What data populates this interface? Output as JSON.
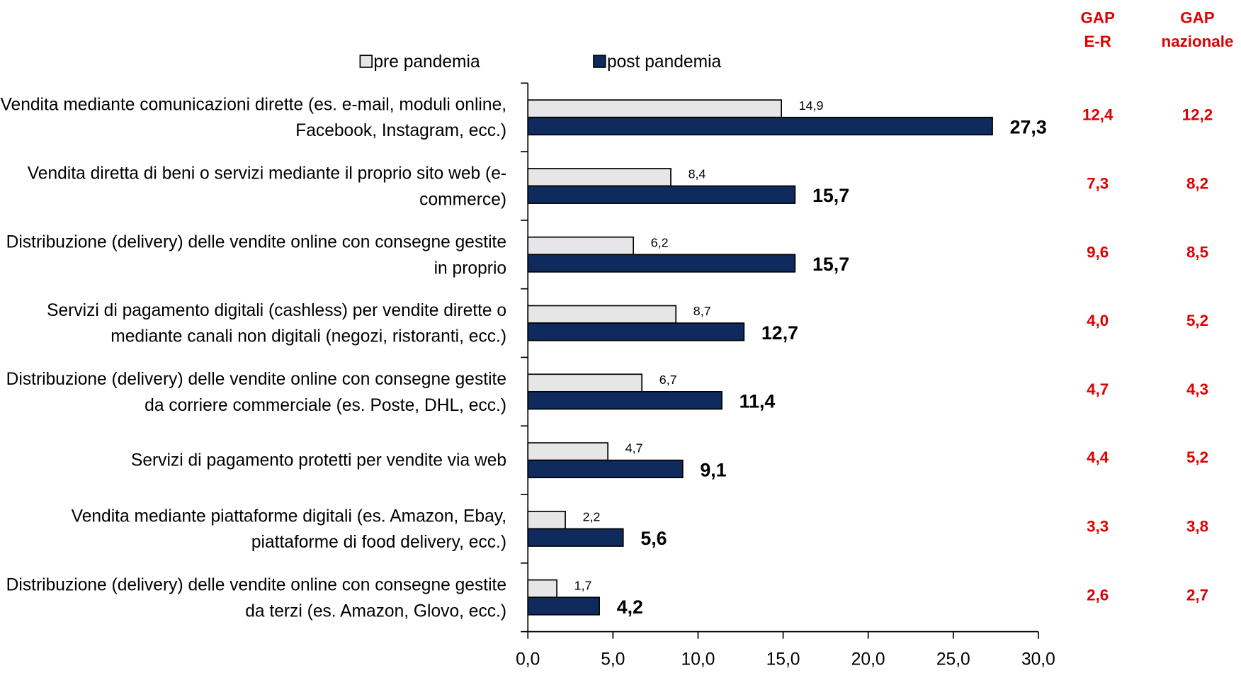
{
  "chart_data": {
    "type": "bar",
    "orientation": "horizontal",
    "categories": [
      "Vendita mediante comunicazioni dirette (es. e-mail, moduli online, Facebook, Instagram, ecc.)",
      "Vendita diretta di beni o servizi mediante il proprio sito web (e-commerce)",
      "Distribuzione (delivery) delle vendite online con consegne gestite in proprio",
      "Servizi di pagamento digitali (cashless) per vendite dirette o mediante canali non digitali (negozi, ristoranti, ecc.)",
      "Distribuzione (delivery) delle vendite online con consegne gestite da corriere commerciale (es. Poste, DHL, ecc.)",
      "Servizi di pagamento protetti per vendite via web",
      "Vendita mediante piattaforme digitali (es. Amazon, Ebay, piattaforme di food delivery, ecc.)",
      "Distribuzione (delivery) delle vendite online con consegne gestite da terzi (es. Amazon, Glovo, ecc.)"
    ],
    "series": [
      {
        "name": "pre pandemia",
        "color": "#e6e6e6",
        "values": [
          14.9,
          8.4,
          6.2,
          8.7,
          6.7,
          4.7,
          2.2,
          1.7
        ],
        "value_labels": [
          "14,9",
          "8,4",
          "6,2",
          "8,7",
          "6,7",
          "4,7",
          "2,2",
          "1,7"
        ]
      },
      {
        "name": "post pandemia",
        "color": "#0f2a5c",
        "values": [
          27.3,
          15.7,
          15.7,
          12.7,
          11.4,
          9.1,
          5.6,
          4.2
        ],
        "value_labels": [
          "27,3",
          "15,7",
          "15,7",
          "12,7",
          "11,4",
          "9,1",
          "5,6",
          "4,2"
        ]
      }
    ],
    "xlim": [
      0,
      30
    ],
    "xticks": [
      {
        "value": 0,
        "label": "0,0"
      },
      {
        "value": 5,
        "label": "5,0"
      },
      {
        "value": 10,
        "label": "10,0"
      },
      {
        "value": 15,
        "label": "15,0"
      },
      {
        "value": 20,
        "label": "20,0"
      },
      {
        "value": 25,
        "label": "25,0"
      },
      {
        "value": 30,
        "label": "30,0"
      }
    ],
    "gap_columns": [
      {
        "name": "GAP E-R",
        "color": "#e00000",
        "values": [
          12.4,
          7.3,
          9.6,
          4.0,
          4.7,
          4.4,
          3.3,
          2.6
        ],
        "value_labels": [
          "12,4",
          "7,3",
          "9,6",
          "4,0",
          "4,7",
          "4,4",
          "3,3",
          "2,6"
        ]
      },
      {
        "name": "GAP nazionale",
        "color": "#e00000",
        "values": [
          12.2,
          8.2,
          8.5,
          5.2,
          4.3,
          5.2,
          3.8,
          2.7
        ],
        "value_labels": [
          "12,2",
          "8,2",
          "8,5",
          "5,2",
          "4,3",
          "5,2",
          "3,8",
          "2,7"
        ]
      }
    ]
  }
}
